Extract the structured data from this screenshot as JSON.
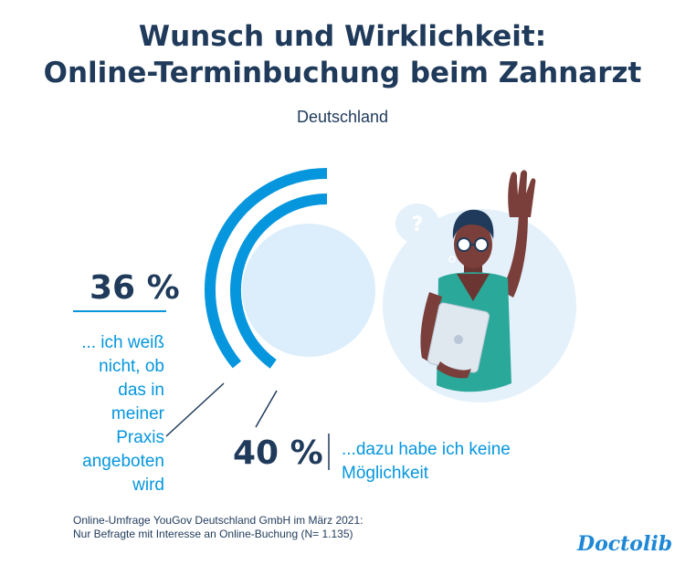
{
  "header": {
    "title_line1": "Wunsch und Wirklichkeit:",
    "title_line2": "Online-Terminbuchung beim Zahnarzt",
    "subtitle": "Deutschland"
  },
  "chart_data": {
    "type": "radial-bar",
    "title": "Wunsch und Wirklichkeit: Online-Terminbuchung beim Zahnarzt",
    "subtitle": "Deutschland",
    "series": [
      {
        "label": "36 %",
        "value": 36,
        "description": "... ich weiß nicht, ob das in meiner Praxis angeboten wird"
      },
      {
        "label": "40 %",
        "value": 40,
        "description": "...dazu habe ich keine Möglichkeit"
      }
    ]
  },
  "labels": {
    "stat1_value": "36 %",
    "stat1_lines": [
      "... ich weiß",
      "nicht, ob",
      "das in",
      "meiner",
      "Praxis",
      "angeboten",
      "wird"
    ],
    "stat2_value": "40 %",
    "stat2_lines": [
      "...dazu habe ich keine",
      "Möglichkeit"
    ]
  },
  "footer": {
    "source_line1": "Online-Umfrage YouGov Deutschland GmbH im März 2021:",
    "source_line2": "Nur Befragte mit Interesse an Online-Buchung (N= 1.135)",
    "logo": "Doctolib"
  },
  "colors": {
    "arc": "#0596de",
    "light_circle": "#dceefb",
    "navy": "#1f3a5a",
    "illustration_bg": "#e4f1fb",
    "shirt": "#2aa89a",
    "skin": "#7a3f3a"
  }
}
